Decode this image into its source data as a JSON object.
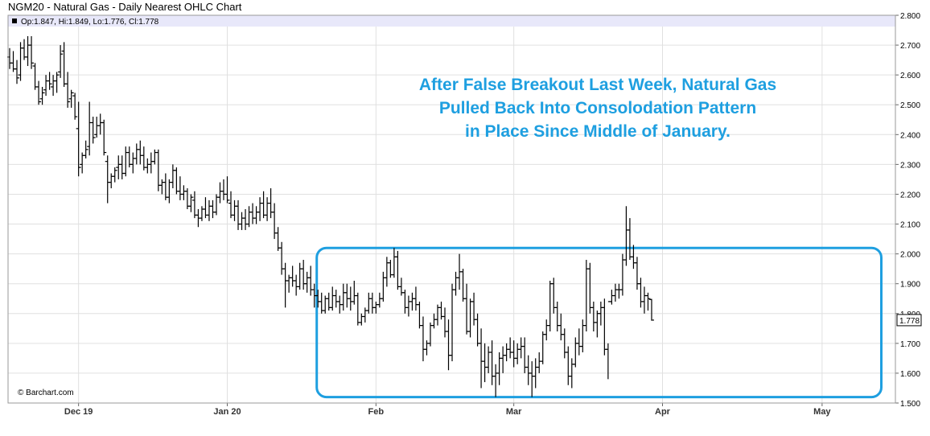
{
  "chart_data": {
    "type": "ohlc",
    "title": "NGM20 - Natural Gas - Daily Nearest OHLC Chart",
    "legend": {
      "label": "Op:1.847, Hi:1.849, Lo:1.776, Cl:1.778"
    },
    "copyright": "© Barchart.com",
    "ylim": [
      1.5,
      2.8
    ],
    "y_ticks": [
      "1.500",
      "1.600",
      "1.700",
      "1.800",
      "1.900",
      "2.000",
      "2.100",
      "2.200",
      "2.300",
      "2.400",
      "2.500",
      "2.600",
      "2.700",
      "2.800"
    ],
    "y_tick_values": [
      1.5,
      1.6,
      1.7,
      1.8,
      1.9,
      2.0,
      2.1,
      2.2,
      2.3,
      2.4,
      2.5,
      2.6,
      2.7,
      2.8
    ],
    "x_ticks": [
      {
        "label": "Dec 19",
        "index": 19
      },
      {
        "label": "Jan 20",
        "index": 60
      },
      {
        "label": "Feb",
        "index": 101
      },
      {
        "label": "Mar",
        "index": 139
      },
      {
        "label": "Apr",
        "index": 180
      },
      {
        "label": "May",
        "index": 224
      }
    ],
    "last_price": "1.778",
    "annotation": {
      "lines": [
        "After False Breakout Last Week, Natural Gas",
        "Pulled Back Into Consolodation Pattern",
        "in Place Since Middle of January."
      ],
      "color": "#1e9fe0"
    },
    "consolidation_box": {
      "y_top": 2.02,
      "y_bottom": 1.52,
      "x_start_index": 86,
      "x_end_index": 239,
      "color": "#1e9fe0"
    },
    "x_index_range": [
      0,
      245
    ],
    "colors": {
      "bars": "#000000",
      "grid": "#e0e0e0",
      "legend_bg": "#e8e8fa"
    },
    "bars": [
      [
        2.66,
        2.69,
        2.62,
        2.64
      ],
      [
        2.64,
        2.68,
        2.61,
        2.62
      ],
      [
        2.62,
        2.65,
        2.57,
        2.59
      ],
      [
        2.6,
        2.71,
        2.58,
        2.69
      ],
      [
        2.69,
        2.72,
        2.65,
        2.66
      ],
      [
        2.66,
        2.73,
        2.63,
        2.7
      ],
      [
        2.7,
        2.73,
        2.62,
        2.64
      ],
      [
        2.63,
        2.64,
        2.55,
        2.56
      ],
      [
        2.56,
        2.58,
        2.5,
        2.51
      ],
      [
        2.52,
        2.56,
        2.5,
        2.54
      ],
      [
        2.55,
        2.6,
        2.53,
        2.58
      ],
      [
        2.58,
        2.61,
        2.55,
        2.57
      ],
      [
        2.56,
        2.6,
        2.53,
        2.58
      ],
      [
        2.58,
        2.61,
        2.54,
        2.6
      ],
      [
        2.61,
        2.7,
        2.59,
        2.67
      ],
      [
        2.68,
        2.71,
        2.56,
        2.57
      ],
      [
        2.57,
        2.61,
        2.49,
        2.51
      ],
      [
        2.52,
        2.55,
        2.49,
        2.54
      ],
      [
        2.53,
        2.54,
        2.45,
        2.46
      ],
      [
        2.42,
        2.51,
        2.26,
        2.29
      ],
      [
        2.3,
        2.34,
        2.27,
        2.33
      ],
      [
        2.33,
        2.38,
        2.32,
        2.35
      ],
      [
        2.36,
        2.51,
        2.33,
        2.44
      ],
      [
        2.44,
        2.46,
        2.37,
        2.39
      ],
      [
        2.4,
        2.46,
        2.39,
        2.43
      ],
      [
        2.43,
        2.47,
        2.4,
        2.44
      ],
      [
        2.44,
        2.45,
        2.33,
        2.34
      ],
      [
        2.31,
        2.33,
        2.17,
        2.24
      ],
      [
        2.24,
        2.27,
        2.22,
        2.26
      ],
      [
        2.26,
        2.29,
        2.24,
        2.28
      ],
      [
        2.29,
        2.33,
        2.25,
        2.3
      ],
      [
        2.3,
        2.33,
        2.25,
        2.27
      ],
      [
        2.27,
        2.36,
        2.26,
        2.34
      ],
      [
        2.34,
        2.36,
        2.29,
        2.3
      ],
      [
        2.3,
        2.34,
        2.27,
        2.32
      ],
      [
        2.32,
        2.37,
        2.3,
        2.35
      ],
      [
        2.35,
        2.38,
        2.3,
        2.33
      ],
      [
        2.33,
        2.36,
        2.28,
        2.29
      ],
      [
        2.29,
        2.32,
        2.27,
        2.3
      ],
      [
        2.3,
        2.34,
        2.27,
        2.31
      ],
      [
        2.31,
        2.35,
        2.3,
        2.34
      ],
      [
        2.34,
        2.35,
        2.21,
        2.23
      ],
      [
        2.23,
        2.25,
        2.2,
        2.24
      ],
      [
        2.24,
        2.27,
        2.18,
        2.19
      ],
      [
        2.19,
        2.25,
        2.17,
        2.24
      ],
      [
        2.24,
        2.3,
        2.22,
        2.28
      ],
      [
        2.28,
        2.29,
        2.2,
        2.21
      ],
      [
        2.21,
        2.26,
        2.18,
        2.2
      ],
      [
        2.2,
        2.23,
        2.18,
        2.21
      ],
      [
        2.21,
        2.22,
        2.15,
        2.16
      ],
      [
        2.16,
        2.2,
        2.14,
        2.19
      ],
      [
        2.18,
        2.21,
        2.12,
        2.13
      ],
      [
        2.13,
        2.15,
        2.09,
        2.12
      ],
      [
        2.12,
        2.16,
        2.11,
        2.15
      ],
      [
        2.15,
        2.19,
        2.12,
        2.13
      ],
      [
        2.13,
        2.18,
        2.11,
        2.16
      ],
      [
        2.16,
        2.18,
        2.12,
        2.14
      ],
      [
        2.14,
        2.2,
        2.13,
        2.19
      ],
      [
        2.19,
        2.24,
        2.17,
        2.21
      ],
      [
        2.21,
        2.25,
        2.18,
        2.2
      ],
      [
        2.2,
        2.26,
        2.17,
        2.18
      ],
      [
        2.17,
        2.21,
        2.12,
        2.13
      ],
      [
        2.13,
        2.18,
        2.11,
        2.16
      ],
      [
        2.16,
        2.18,
        2.08,
        2.1
      ],
      [
        2.1,
        2.14,
        2.08,
        2.12
      ],
      [
        2.12,
        2.15,
        2.08,
        2.1
      ],
      [
        2.1,
        2.16,
        2.09,
        2.14
      ],
      [
        2.14,
        2.17,
        2.1,
        2.12
      ],
      [
        2.12,
        2.16,
        2.1,
        2.14
      ],
      [
        2.14,
        2.19,
        2.11,
        2.17
      ],
      [
        2.17,
        2.21,
        2.12,
        2.13
      ],
      [
        2.13,
        2.19,
        2.11,
        2.17
      ],
      [
        2.17,
        2.22,
        2.12,
        2.14
      ],
      [
        2.14,
        2.17,
        2.05,
        2.07
      ],
      [
        2.07,
        2.09,
        2.01,
        2.02
      ],
      [
        2.02,
        2.04,
        1.93,
        1.95
      ],
      [
        1.95,
        1.97,
        1.82,
        1.91
      ],
      [
        1.91,
        1.93,
        1.87,
        1.92
      ],
      [
        1.92,
        1.96,
        1.89,
        1.91
      ],
      [
        1.91,
        1.93,
        1.86,
        1.89
      ],
      [
        1.89,
        1.97,
        1.88,
        1.95
      ],
      [
        1.95,
        1.98,
        1.88,
        1.9
      ],
      [
        1.9,
        1.94,
        1.87,
        1.92
      ],
      [
        1.92,
        1.96,
        1.86,
        1.88
      ],
      [
        1.88,
        1.9,
        1.82,
        1.86
      ],
      [
        1.86,
        1.88,
        1.82,
        1.84
      ],
      [
        1.84,
        1.87,
        1.8,
        1.81
      ],
      [
        1.81,
        1.86,
        1.8,
        1.85
      ],
      [
        1.85,
        1.87,
        1.81,
        1.82
      ],
      [
        1.82,
        1.89,
        1.81,
        1.86
      ],
      [
        1.86,
        1.88,
        1.82,
        1.84
      ],
      [
        1.84,
        1.86,
        1.8,
        1.83
      ],
      [
        1.83,
        1.9,
        1.81,
        1.87
      ],
      [
        1.87,
        1.9,
        1.82,
        1.85
      ],
      [
        1.85,
        1.89,
        1.81,
        1.84
      ],
      [
        1.84,
        1.91,
        1.83,
        1.86
      ],
      [
        1.86,
        1.87,
        1.76,
        1.77
      ],
      [
        1.77,
        1.8,
        1.76,
        1.79
      ],
      [
        1.79,
        1.82,
        1.77,
        1.81
      ],
      [
        1.81,
        1.87,
        1.8,
        1.85
      ],
      [
        1.85,
        1.87,
        1.8,
        1.82
      ],
      [
        1.82,
        1.84,
        1.8,
        1.83
      ],
      [
        1.83,
        1.87,
        1.82,
        1.85
      ],
      [
        1.85,
        1.94,
        1.84,
        1.92
      ],
      [
        1.92,
        1.99,
        1.89,
        1.97
      ],
      [
        1.97,
        1.98,
        1.92,
        1.93
      ],
      [
        1.93,
        2.02,
        1.92,
        1.99
      ],
      [
        1.99,
        2.01,
        1.88,
        1.89
      ],
      [
        1.89,
        1.92,
        1.86,
        1.87
      ],
      [
        1.87,
        1.88,
        1.8,
        1.82
      ],
      [
        1.82,
        1.86,
        1.79,
        1.84
      ],
      [
        1.84,
        1.87,
        1.81,
        1.85
      ],
      [
        1.85,
        1.89,
        1.81,
        1.83
      ],
      [
        1.83,
        1.84,
        1.75,
        1.76
      ],
      [
        1.76,
        1.79,
        1.64,
        1.68
      ],
      [
        1.68,
        1.71,
        1.66,
        1.7
      ],
      [
        1.7,
        1.77,
        1.69,
        1.76
      ],
      [
        1.76,
        1.8,
        1.75,
        1.78
      ],
      [
        1.78,
        1.83,
        1.76,
        1.82
      ],
      [
        1.82,
        1.84,
        1.78,
        1.79
      ],
      [
        1.79,
        1.82,
        1.72,
        1.74
      ],
      [
        1.74,
        1.78,
        1.61,
        1.66
      ],
      [
        1.66,
        1.9,
        1.64,
        1.88
      ],
      [
        1.88,
        1.94,
        1.86,
        1.92
      ],
      [
        1.92,
        2.0,
        1.88,
        1.94
      ],
      [
        1.94,
        1.95,
        1.84,
        1.85
      ],
      [
        1.85,
        1.9,
        1.73,
        1.74
      ],
      [
        1.74,
        1.85,
        1.72,
        1.84
      ],
      [
        1.84,
        1.87,
        1.76,
        1.78
      ],
      [
        1.78,
        1.8,
        1.69,
        1.7
      ],
      [
        1.7,
        1.75,
        1.55,
        1.64
      ],
      [
        1.64,
        1.7,
        1.57,
        1.62
      ],
      [
        1.62,
        1.69,
        1.6,
        1.67
      ],
      [
        1.67,
        1.71,
        1.56,
        1.59
      ],
      [
        1.59,
        1.63,
        1.52,
        1.6
      ],
      [
        1.6,
        1.67,
        1.56,
        1.65
      ],
      [
        1.65,
        1.69,
        1.6,
        1.66
      ],
      [
        1.66,
        1.7,
        1.64,
        1.68
      ],
      [
        1.68,
        1.72,
        1.65,
        1.67
      ],
      [
        1.67,
        1.71,
        1.62,
        1.65
      ],
      [
        1.65,
        1.7,
        1.63,
        1.68
      ],
      [
        1.68,
        1.72,
        1.65,
        1.69
      ],
      [
        1.69,
        1.72,
        1.6,
        1.62
      ],
      [
        1.62,
        1.66,
        1.56,
        1.6
      ],
      [
        1.6,
        1.64,
        1.52,
        1.59
      ],
      [
        1.59,
        1.65,
        1.55,
        1.62
      ],
      [
        1.62,
        1.67,
        1.6,
        1.64
      ],
      [
        1.64,
        1.74,
        1.63,
        1.73
      ],
      [
        1.73,
        1.78,
        1.71,
        1.76
      ],
      [
        1.76,
        1.91,
        1.74,
        1.9
      ],
      [
        1.9,
        1.92,
        1.8,
        1.82
      ],
      [
        1.82,
        1.84,
        1.74,
        1.76
      ],
      [
        1.76,
        1.8,
        1.71,
        1.73
      ],
      [
        1.73,
        1.75,
        1.65,
        1.67
      ],
      [
        1.67,
        1.69,
        1.56,
        1.59
      ],
      [
        1.59,
        1.65,
        1.55,
        1.63
      ],
      [
        1.63,
        1.72,
        1.62,
        1.7
      ],
      [
        1.7,
        1.75,
        1.66,
        1.69
      ],
      [
        1.69,
        1.78,
        1.67,
        1.76
      ],
      [
        1.76,
        1.98,
        1.74,
        1.95
      ],
      [
        1.95,
        1.97,
        1.8,
        1.82
      ],
      [
        1.82,
        1.84,
        1.74,
        1.77
      ],
      [
        1.77,
        1.81,
        1.72,
        1.8
      ],
      [
        1.8,
        1.84,
        1.76,
        1.82
      ],
      [
        1.82,
        1.85,
        1.66,
        1.68
      ],
      [
        1.68,
        1.7,
        1.58,
        1.84
      ],
      [
        1.84,
        1.88,
        1.83,
        1.86
      ],
      [
        1.86,
        1.9,
        1.84,
        1.88
      ],
      [
        1.88,
        1.9,
        1.85,
        1.88
      ],
      [
        1.88,
        2.0,
        1.86,
        1.98
      ],
      [
        1.98,
        2.16,
        1.96,
        2.08
      ],
      [
        2.08,
        2.12,
        1.98,
        1.99
      ],
      [
        1.99,
        2.03,
        1.95,
        1.97
      ],
      [
        1.97,
        1.99,
        1.88,
        1.9
      ],
      [
        1.9,
        1.92,
        1.82,
        1.84
      ],
      [
        1.84,
        1.89,
        1.8,
        1.86
      ],
      [
        1.86,
        1.87,
        1.81,
        1.85
      ],
      [
        1.847,
        1.849,
        1.776,
        1.778
      ]
    ]
  }
}
